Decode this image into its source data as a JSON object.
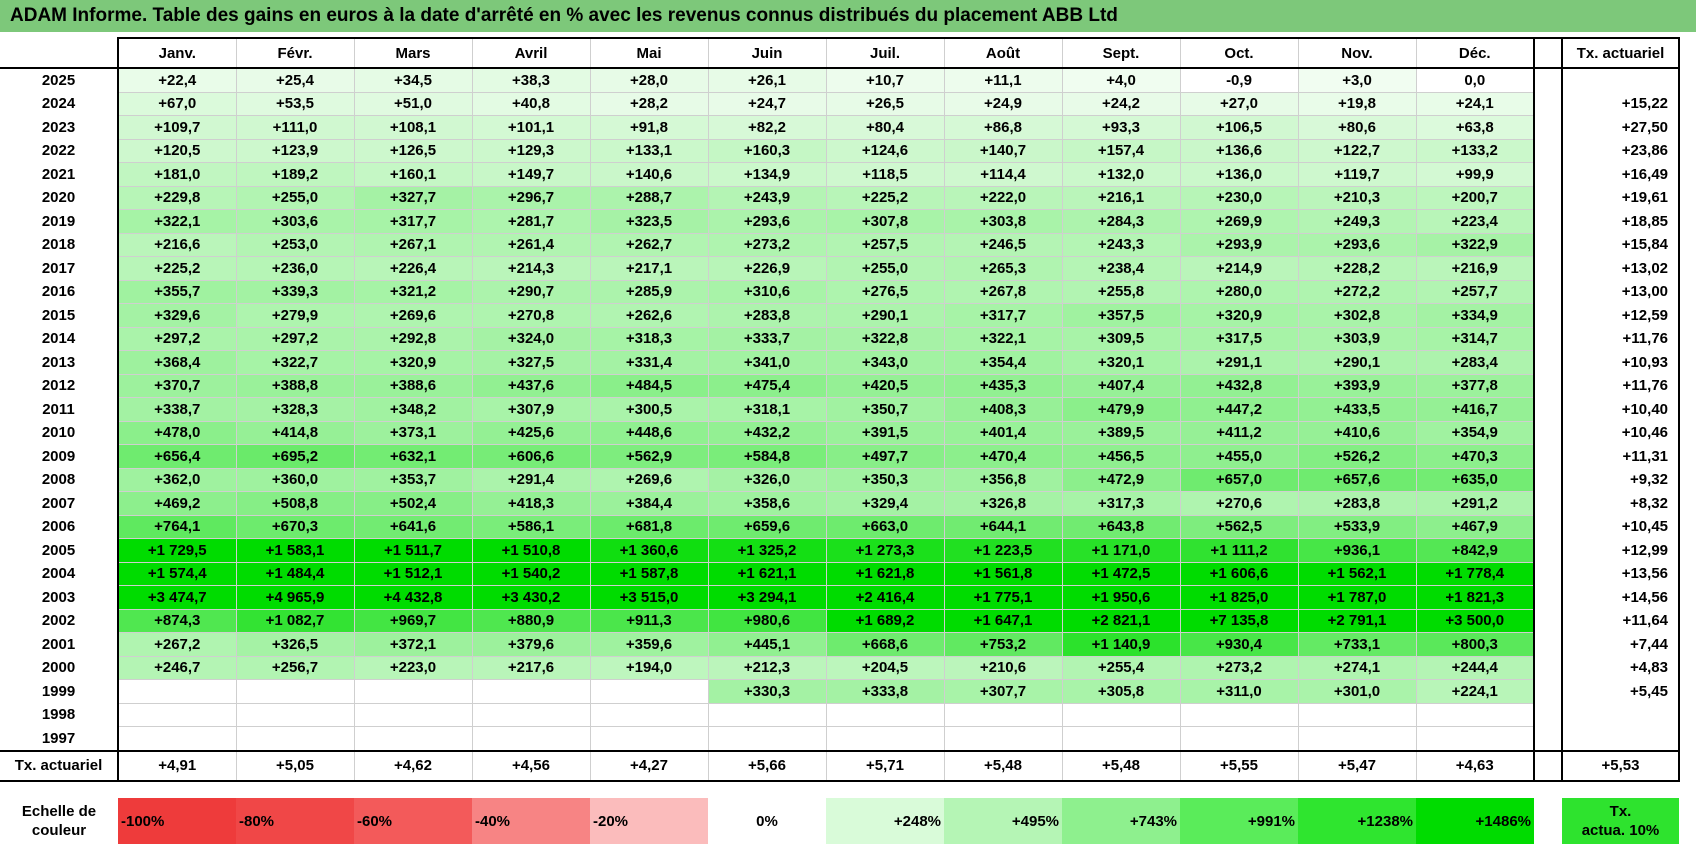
{
  "title": "ADAM Informe. Table des gains en euros à la date d'arrêté en % avec les revenus connus distribués du placement ABB Ltd",
  "months": [
    "Janv.",
    "Févr.",
    "Mars",
    "Avril",
    "Mai",
    "Juin",
    "Juil.",
    "Août",
    "Sept.",
    "Oct.",
    "Nov.",
    "Déc."
  ],
  "actuarial_header": "Tx. actuariel",
  "rows": [
    {
      "year": "2025",
      "values": [
        "+22,4",
        "+25,4",
        "+34,5",
        "+38,3",
        "+28,0",
        "+26,1",
        "+10,7",
        "+11,1",
        "+4,0",
        "-0,9",
        "+3,0",
        "0,0"
      ],
      "rate": ""
    },
    {
      "year": "2024",
      "values": [
        "+67,0",
        "+53,5",
        "+51,0",
        "+40,8",
        "+28,2",
        "+24,7",
        "+26,5",
        "+24,9",
        "+24,2",
        "+27,0",
        "+19,8",
        "+24,1"
      ],
      "rate": "+15,22"
    },
    {
      "year": "2023",
      "values": [
        "+109,7",
        "+111,0",
        "+108,1",
        "+101,1",
        "+91,8",
        "+82,2",
        "+80,4",
        "+86,8",
        "+93,3",
        "+106,5",
        "+80,6",
        "+63,8"
      ],
      "rate": "+27,50"
    },
    {
      "year": "2022",
      "values": [
        "+120,5",
        "+123,9",
        "+126,5",
        "+129,3",
        "+133,1",
        "+160,3",
        "+124,6",
        "+140,7",
        "+157,4",
        "+136,6",
        "+122,7",
        "+133,2"
      ],
      "rate": "+23,86"
    },
    {
      "year": "2021",
      "values": [
        "+181,0",
        "+189,2",
        "+160,1",
        "+149,7",
        "+140,6",
        "+134,9",
        "+118,5",
        "+114,4",
        "+132,0",
        "+136,0",
        "+119,7",
        "+99,9"
      ],
      "rate": "+16,49"
    },
    {
      "year": "2020",
      "values": [
        "+229,8",
        "+255,0",
        "+327,7",
        "+296,7",
        "+288,7",
        "+243,9",
        "+225,2",
        "+222,0",
        "+216,1",
        "+230,0",
        "+210,3",
        "+200,7"
      ],
      "rate": "+19,61"
    },
    {
      "year": "2019",
      "values": [
        "+322,1",
        "+303,6",
        "+317,7",
        "+281,7",
        "+323,5",
        "+293,6",
        "+307,8",
        "+303,8",
        "+284,3",
        "+269,9",
        "+249,3",
        "+223,4"
      ],
      "rate": "+18,85"
    },
    {
      "year": "2018",
      "values": [
        "+216,6",
        "+253,0",
        "+267,1",
        "+261,4",
        "+262,7",
        "+273,2",
        "+257,5",
        "+246,5",
        "+243,3",
        "+293,9",
        "+293,6",
        "+322,9"
      ],
      "rate": "+15,84"
    },
    {
      "year": "2017",
      "values": [
        "+225,2",
        "+236,0",
        "+226,4",
        "+214,3",
        "+217,1",
        "+226,9",
        "+255,0",
        "+265,3",
        "+238,4",
        "+214,9",
        "+228,2",
        "+216,9"
      ],
      "rate": "+13,02"
    },
    {
      "year": "2016",
      "values": [
        "+355,7",
        "+339,3",
        "+321,2",
        "+290,7",
        "+285,9",
        "+310,6",
        "+276,5",
        "+267,8",
        "+255,8",
        "+280,0",
        "+272,2",
        "+257,7"
      ],
      "rate": "+13,00"
    },
    {
      "year": "2015",
      "values": [
        "+329,6",
        "+279,9",
        "+269,6",
        "+270,8",
        "+262,6",
        "+283,8",
        "+290,1",
        "+317,7",
        "+357,5",
        "+320,9",
        "+302,8",
        "+334,9"
      ],
      "rate": "+12,59"
    },
    {
      "year": "2014",
      "values": [
        "+297,2",
        "+297,2",
        "+292,8",
        "+324,0",
        "+318,3",
        "+333,7",
        "+322,8",
        "+322,1",
        "+309,5",
        "+317,5",
        "+303,9",
        "+314,7"
      ],
      "rate": "+11,76"
    },
    {
      "year": "2013",
      "values": [
        "+368,4",
        "+322,7",
        "+320,9",
        "+327,5",
        "+331,4",
        "+341,0",
        "+343,0",
        "+354,4",
        "+320,1",
        "+291,1",
        "+290,1",
        "+283,4"
      ],
      "rate": "+10,93"
    },
    {
      "year": "2012",
      "values": [
        "+370,7",
        "+388,8",
        "+388,6",
        "+437,6",
        "+484,5",
        "+475,4",
        "+420,5",
        "+435,3",
        "+407,4",
        "+432,8",
        "+393,9",
        "+377,8"
      ],
      "rate": "+11,76"
    },
    {
      "year": "2011",
      "values": [
        "+338,7",
        "+328,3",
        "+348,2",
        "+307,9",
        "+300,5",
        "+318,1",
        "+350,7",
        "+408,3",
        "+479,9",
        "+447,2",
        "+433,5",
        "+416,7"
      ],
      "rate": "+10,40"
    },
    {
      "year": "2010",
      "values": [
        "+478,0",
        "+414,8",
        "+373,1",
        "+425,6",
        "+448,6",
        "+432,2",
        "+391,5",
        "+401,4",
        "+389,5",
        "+411,2",
        "+410,6",
        "+354,9"
      ],
      "rate": "+10,46"
    },
    {
      "year": "2009",
      "values": [
        "+656,4",
        "+695,2",
        "+632,1",
        "+606,6",
        "+562,9",
        "+584,8",
        "+497,7",
        "+470,4",
        "+456,5",
        "+455,0",
        "+526,2",
        "+470,3"
      ],
      "rate": "+11,31"
    },
    {
      "year": "2008",
      "values": [
        "+362,0",
        "+360,0",
        "+353,7",
        "+291,4",
        "+269,6",
        "+326,0",
        "+350,3",
        "+356,8",
        "+472,9",
        "+657,0",
        "+657,6",
        "+635,0"
      ],
      "rate": "+9,32"
    },
    {
      "year": "2007",
      "values": [
        "+469,2",
        "+508,8",
        "+502,4",
        "+418,3",
        "+384,4",
        "+358,6",
        "+329,4",
        "+326,8",
        "+317,3",
        "+270,6",
        "+283,8",
        "+291,2"
      ],
      "rate": "+8,32"
    },
    {
      "year": "2006",
      "values": [
        "+764,1",
        "+670,3",
        "+641,6",
        "+586,1",
        "+681,8",
        "+659,6",
        "+663,0",
        "+644,1",
        "+643,8",
        "+562,5",
        "+533,9",
        "+467,9"
      ],
      "rate": "+10,45"
    },
    {
      "year": "2005",
      "values": [
        "+1 729,5",
        "+1 583,1",
        "+1 511,7",
        "+1 510,8",
        "+1 360,6",
        "+1 325,2",
        "+1 273,3",
        "+1 223,5",
        "+1 171,0",
        "+1 111,2",
        "+936,1",
        "+842,9"
      ],
      "rate": "+12,99"
    },
    {
      "year": "2004",
      "values": [
        "+1 574,4",
        "+1 484,4",
        "+1 512,1",
        "+1 540,2",
        "+1 587,8",
        "+1 621,1",
        "+1 621,8",
        "+1 561,8",
        "+1 472,5",
        "+1 606,6",
        "+1 562,1",
        "+1 778,4"
      ],
      "rate": "+13,56"
    },
    {
      "year": "2003",
      "values": [
        "+3 474,7",
        "+4 965,9",
        "+4 432,8",
        "+3 430,2",
        "+3 515,0",
        "+3 294,1",
        "+2 416,4",
        "+1 775,1",
        "+1 950,6",
        "+1 825,0",
        "+1 787,0",
        "+1 821,3"
      ],
      "rate": "+14,56"
    },
    {
      "year": "2002",
      "values": [
        "+874,3",
        "+1 082,7",
        "+969,7",
        "+880,9",
        "+911,3",
        "+980,6",
        "+1 689,2",
        "+1 647,1",
        "+2 821,1",
        "+7 135,8",
        "+2 791,1",
        "+3 500,0"
      ],
      "rate": "+11,64"
    },
    {
      "year": "2001",
      "values": [
        "+267,2",
        "+326,5",
        "+372,1",
        "+379,6",
        "+359,6",
        "+445,1",
        "+668,6",
        "+753,2",
        "+1 140,9",
        "+930,4",
        "+733,1",
        "+800,3"
      ],
      "rate": "+7,44"
    },
    {
      "year": "2000",
      "values": [
        "+246,7",
        "+256,7",
        "+223,0",
        "+217,6",
        "+194,0",
        "+212,3",
        "+204,5",
        "+210,6",
        "+255,4",
        "+273,2",
        "+274,1",
        "+244,4"
      ],
      "rate": "+4,83"
    },
    {
      "year": "1999",
      "values": [
        "",
        "",
        "",
        "",
        "",
        "+330,3",
        "+333,8",
        "+307,7",
        "+305,8",
        "+311,0",
        "+301,0",
        "+224,1"
      ],
      "rate": "+5,45"
    },
    {
      "year": "1998",
      "values": [
        "",
        "",
        "",
        "",
        "",
        "",
        "",
        "",
        "",
        "",
        "",
        ""
      ],
      "rate": ""
    },
    {
      "year": "1997",
      "values": [
        "",
        "",
        "",
        "",
        "",
        "",
        "",
        "",
        "",
        "",
        "",
        ""
      ],
      "rate": ""
    }
  ],
  "footer": {
    "label": "Tx. actuariel",
    "values": [
      "+4,91",
      "+5,05",
      "+4,62",
      "+4,56",
      "+4,27",
      "+5,66",
      "+5,71",
      "+5,48",
      "+5,48",
      "+5,55",
      "+5,47",
      "+4,63"
    ],
    "rate": "+5,53"
  },
  "scale": {
    "label_line1": "Echelle de",
    "label_line2": "couleur",
    "items": [
      "-100%",
      "-80%",
      "-60%",
      "-40%",
      "-20%",
      "0%",
      "+248%",
      "+495%",
      "+743%",
      "+991%",
      "+1238%",
      "+1486%"
    ],
    "colors": [
      "#ee3b3b",
      "#f04747",
      "#f35a5a",
      "#f78484",
      "#fbbcbc",
      "#ffffff",
      "#d9fbd9",
      "#b5f5b5",
      "#8ef08e",
      "#5aec5a",
      "#2fe52f",
      "#00dc00"
    ],
    "legend10_line1": "Tx.",
    "legend10_line2": "actua. 10%",
    "legend10_color": "#2ee32e"
  },
  "colors": {
    "title_bg": "#7dc87a",
    "scale_max": 1486
  }
}
